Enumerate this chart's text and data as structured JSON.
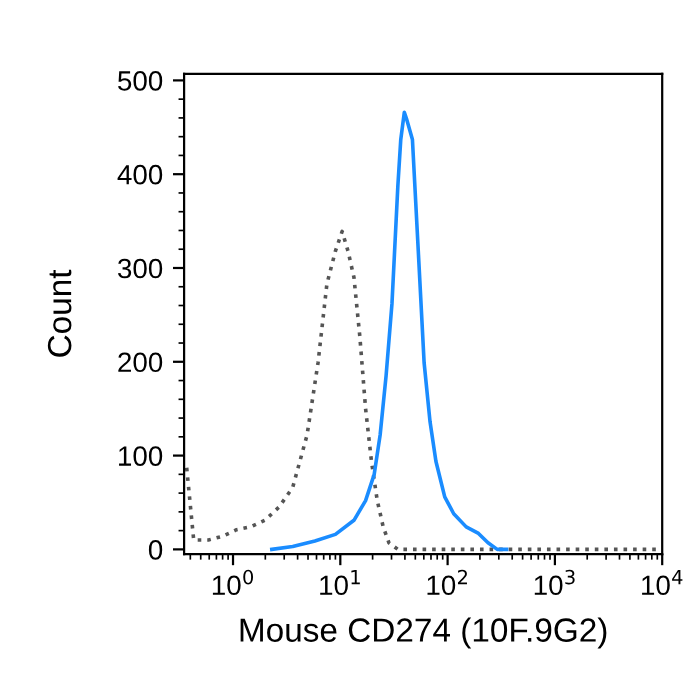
{
  "chart_data": {
    "type": "line",
    "xlabel": "Mouse CD274 (10F.9G2)",
    "ylabel": "Count",
    "log": "x",
    "xlim": [
      0.35,
      10000
    ],
    "xticks": [
      {
        "value": 1,
        "label": "10$^{0}$"
      },
      {
        "value": 10,
        "label": "10$^{1}$"
      },
      {
        "value": 100,
        "label": "10$^{2}$"
      },
      {
        "value": 1000,
        "label": "10$^{3}$"
      },
      {
        "value": 10000,
        "label": "10$^{4}$"
      }
    ],
    "ylim": [
      -5,
      507
    ],
    "yticks": [
      0,
      100,
      200,
      300,
      400,
      500
    ],
    "grid": false,
    "legend": false,
    "series": [
      {
        "color": "#555555",
        "line_style": "dotted",
        "x": [
          0.37,
          0.43,
          0.59,
          0.8,
          1.08,
          1.46,
          1.98,
          2.68,
          3.6,
          4.9,
          6.2,
          7.5,
          9.0,
          10.4,
          11.8,
          13.4,
          15.2,
          17.2,
          19.5,
          22.1,
          25.1,
          28.4,
          34.4,
          9000
        ],
        "values": [
          87,
          10,
          10,
          14,
          21,
          24,
          31,
          45,
          66,
          122,
          199,
          283,
          318,
          339,
          318,
          290,
          227,
          150,
          94,
          52,
          24,
          7,
          0,
          0
        ]
      },
      {
        "color": "#1a8cff",
        "line_style": "solid",
        "x": [
          2.3,
          3.6,
          5.8,
          9.0,
          13.4,
          17.2,
          20.7,
          23.5,
          26.7,
          30.3,
          34.4,
          36.6,
          39.5,
          41.4,
          47.0,
          53.3,
          60.4,
          68.6,
          77.8,
          94.0,
          114,
          149,
          194,
          238,
          290,
          354
        ],
        "values": [
          0,
          3,
          9,
          16,
          31,
          52,
          80,
          122,
          185,
          262,
          388,
          437,
          466,
          459,
          437,
          318,
          199,
          136,
          94,
          56,
          38,
          24,
          17,
          7,
          0,
          0
        ]
      }
    ]
  }
}
